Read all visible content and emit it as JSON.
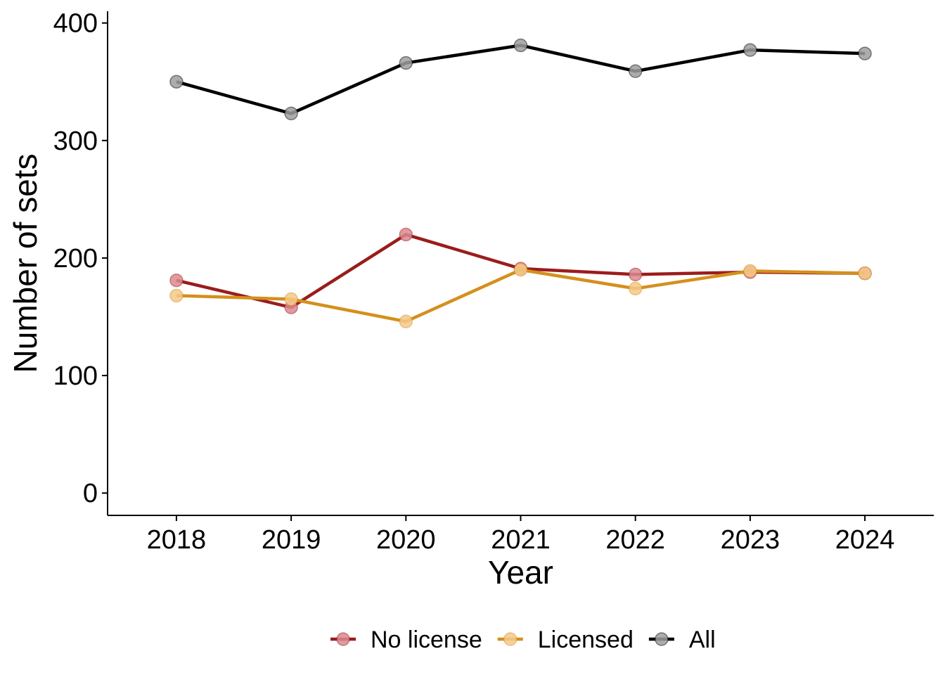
{
  "chart_data": {
    "type": "line",
    "xlabel": "Year",
    "ylabel": "Number of sets",
    "x": [
      2018,
      2019,
      2020,
      2021,
      2022,
      2023,
      2024
    ],
    "x_tick_labels": [
      "2018",
      "2019",
      "2020",
      "2021",
      "2022",
      "2023",
      "2024"
    ],
    "xlim": [
      2017.4,
      2024.6
    ],
    "ylim": [
      -19,
      410
    ],
    "y_ticks": [
      0,
      100,
      200,
      300,
      400
    ],
    "y_tick_labels": [
      "0",
      "100",
      "200",
      "300",
      "400"
    ],
    "grid": false,
    "legend_position": "bottom",
    "series": [
      {
        "name": "No license",
        "color": "#9B1C1C",
        "marker_color": "#D98A8F",
        "values": [
          181,
          158,
          220,
          191,
          186,
          188,
          187
        ]
      },
      {
        "name": "Licensed",
        "color": "#D4901C",
        "marker_color": "#F5C98A",
        "values": [
          168,
          165,
          146,
          190,
          174,
          189,
          187
        ]
      },
      {
        "name": "All",
        "color": "#000000",
        "marker_color": "#9E9E9E",
        "values": [
          350,
          323,
          366,
          381,
          359,
          377,
          374
        ]
      }
    ]
  }
}
